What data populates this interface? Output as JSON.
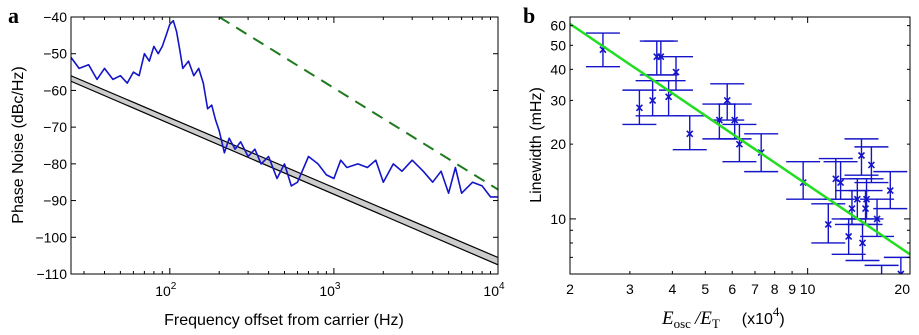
{
  "panels": {
    "a": "a",
    "b": "b"
  },
  "chart_data": [
    {
      "id": "a",
      "type": "line",
      "xscale": "log",
      "xlim": [
        25,
        10000
      ],
      "ylim": [
        -110,
        -40
      ],
      "xlabel": "Frequency offset from carrier (Hz)",
      "ylabel": "Phase Noise (dBc/Hz)",
      "xticks": [
        {
          "value": 100,
          "base": "10",
          "exp": "2"
        },
        {
          "value": 1000,
          "base": "10",
          "exp": "3"
        },
        {
          "value": 10000,
          "base": "10",
          "exp": "4"
        }
      ],
      "yticks": [
        {
          "value": -40,
          "label": "−40"
        },
        {
          "value": -50,
          "label": "−50"
        },
        {
          "value": -60,
          "label": "−60"
        },
        {
          "value": -70,
          "label": "−70"
        },
        {
          "value": -80,
          "label": "−80"
        },
        {
          "value": -90,
          "label": "−90"
        },
        {
          "value": -100,
          "label": "−100"
        },
        {
          "value": -110,
          "label": "−110"
        }
      ],
      "series": [
        {
          "kind": "measured",
          "color": "#1515c8",
          "x": [
            25,
            28,
            32,
            36,
            40,
            45,
            50,
            55,
            60,
            65,
            70,
            75,
            80,
            85,
            90,
            95,
            100,
            105,
            110,
            115,
            120,
            130,
            140,
            150,
            160,
            170,
            180,
            190,
            200,
            215,
            230,
            250,
            270,
            300,
            330,
            360,
            400,
            450,
            500,
            550,
            600,
            700,
            800,
            900,
            1000,
            1100,
            1200,
            1400,
            1600,
            1800,
            2000,
            2300,
            2600,
            3000,
            3500,
            4000,
            4500,
            5000,
            5500,
            6000,
            7000,
            8000,
            9000,
            10000
          ],
          "y": [
            -51,
            -54,
            -53,
            -57,
            -54,
            -57,
            -56,
            -58,
            -55,
            -56,
            -50,
            -52,
            -48,
            -50,
            -48,
            -45,
            -42,
            -41,
            -44,
            -49,
            -54,
            -52,
            -56,
            -54,
            -58,
            -65,
            -64,
            -68,
            -71,
            -77,
            -73,
            -76,
            -74,
            -78,
            -76,
            -80,
            -78,
            -84,
            -80,
            -86,
            -85,
            -78,
            -80,
            -83,
            -84,
            -79,
            -81,
            -80,
            -81,
            -79,
            -85,
            -80,
            -82,
            -79,
            -82,
            -85,
            -82,
            -88,
            -81,
            -88,
            -85,
            -86,
            -89,
            -89
          ]
        },
        {
          "kind": "dashed-bound",
          "color": "#1f7a1f",
          "x": [
            200,
            10000
          ],
          "y": [
            -40,
            -87
          ]
        },
        {
          "kind": "band-upper",
          "color": "#000000",
          "x": [
            25,
            10000
          ],
          "y": [
            -56,
            -105.5
          ]
        },
        {
          "kind": "band-lower",
          "color": "#000000",
          "x": [
            25,
            10000
          ],
          "y": [
            -57.5,
            -107.5
          ]
        }
      ]
    },
    {
      "id": "b",
      "type": "scatter",
      "xscale": "log",
      "yscale": "log",
      "xlim": [
        2,
        20
      ],
      "ylim": [
        6,
        65
      ],
      "ylabel": "Linewidth (mHz)",
      "xlabel_main": "E",
      "xlabel_sub1": "osc",
      "xlabel_sub2": "T",
      "xlabel_slash": "/",
      "xlabel_unit": "(x10",
      "xlabel_unit_exp": "4",
      "xlabel_unit_close": ")",
      "xticks": [
        {
          "value": 2,
          "label": "2"
        },
        {
          "value": 3,
          "label": "3"
        },
        {
          "value": 4,
          "label": "4"
        },
        {
          "value": 5,
          "label": "5"
        },
        {
          "value": 6,
          "label": "6"
        },
        {
          "value": 7,
          "label": "7"
        },
        {
          "value": 8,
          "label": "8"
        },
        {
          "value": 9,
          "label": "9"
        },
        {
          "value": 10,
          "label": "10"
        },
        {
          "value": 20,
          "label": "20"
        }
      ],
      "yticks": [
        {
          "value": 10,
          "label": "10"
        },
        {
          "value": 20,
          "label": "20"
        },
        {
          "value": 30,
          "label": "30"
        },
        {
          "value": 40,
          "label": "40"
        },
        {
          "value": 50,
          "label": "50"
        },
        {
          "value": 60,
          "label": "60"
        }
      ],
      "fit": {
        "color": "#22dd22",
        "x": [
          2,
          20
        ],
        "y": [
          61,
          7.2
        ]
      },
      "points": {
        "color": "#1515c8",
        "x": [
          2.5,
          3.2,
          3.5,
          3.6,
          3.7,
          3.9,
          4.1,
          4.5,
          5.5,
          5.8,
          6.1,
          6.3,
          7.3,
          9.7,
          11.5,
          12.1,
          12.5,
          13.2,
          13.5,
          14.0,
          14.4,
          14.5,
          14.8,
          14.9,
          15.4,
          16.0,
          16.5,
          17.5,
          18.8
        ],
        "y": [
          48,
          28,
          30,
          45,
          45,
          31,
          39,
          22,
          25,
          30,
          25,
          20,
          18.5,
          14,
          9.5,
          14.5,
          14,
          8.5,
          11,
          12,
          18,
          8,
          11,
          12,
          16.5,
          10,
          5.5,
          13,
          6
        ],
        "hi": [
          56,
          33,
          36,
          52,
          52,
          36,
          45,
          26,
          29,
          35,
          29,
          24,
          22,
          17,
          11.5,
          17.5,
          17,
          10,
          13,
          14.5,
          21,
          9.5,
          13,
          14.5,
          19.5,
          12,
          6.5,
          15.5,
          7
        ],
        "lo": [
          41,
          24,
          26,
          38,
          38,
          26,
          33,
          19,
          21,
          25,
          21,
          17,
          15.5,
          12,
          8,
          12,
          12,
          7.2,
          9.5,
          10,
          15,
          6.8,
          9.5,
          10,
          14,
          8.5,
          4.8,
          11,
          5.2
        ]
      }
    }
  ]
}
